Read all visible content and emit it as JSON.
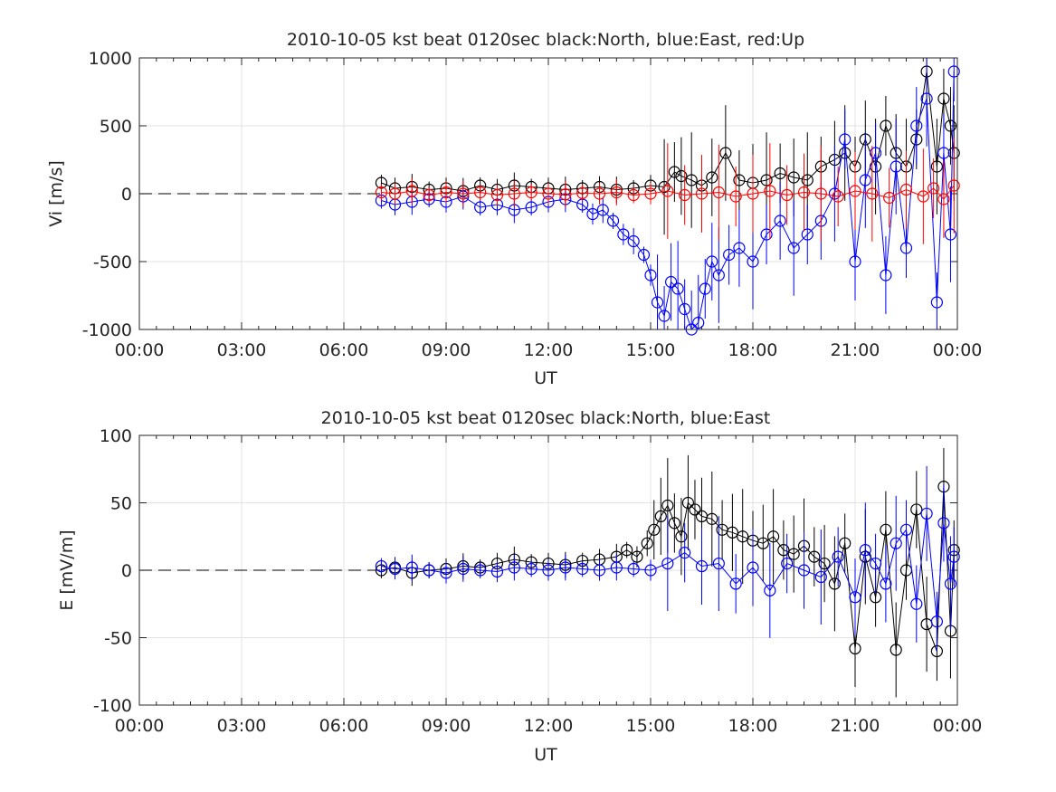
{
  "chart_data": [
    {
      "type": "scatter",
      "title": "2010-10-05 kst beat 0120sec black:North, blue:East, red:Up",
      "xlabel": "UT",
      "ylabel": "Vi [m/s]",
      "xlim_hours": [
        0,
        24
      ],
      "ylim": [
        -1000,
        1000
      ],
      "xticks": [
        "00:00",
        "03:00",
        "06:00",
        "09:00",
        "12:00",
        "15:00",
        "18:00",
        "21:00",
        "00:00"
      ],
      "yticks": [
        "1000",
        "500",
        "0",
        "-500",
        "-1000"
      ],
      "grid": true,
      "zero_line": "dashed",
      "marker": "open-circle-with-error-bars",
      "series": [
        {
          "color": "#000000",
          "x_hours": [
            7.1,
            7.5,
            8.0,
            8.5,
            9.0,
            9.5,
            10.0,
            10.5,
            11.0,
            11.5,
            12.0,
            12.5,
            13.0,
            13.5,
            14.0,
            14.5,
            15.0,
            15.4,
            15.7,
            15.9,
            16.2,
            16.5,
            16.8,
            17.2,
            17.6,
            18.0,
            18.4,
            18.8,
            19.2,
            19.6,
            20.0,
            20.4,
            20.7,
            21.0,
            21.3,
            21.6,
            21.9,
            22.2,
            22.5,
            22.8,
            23.1,
            23.4,
            23.6,
            23.8,
            23.9
          ],
          "values": [
            80,
            40,
            50,
            30,
            40,
            20,
            60,
            30,
            60,
            50,
            40,
            30,
            40,
            50,
            30,
            40,
            60,
            50,
            160,
            130,
            100,
            60,
            120,
            300,
            100,
            80,
            100,
            150,
            120,
            100,
            200,
            250,
            300,
            200,
            400,
            200,
            500,
            300,
            200,
            400,
            900,
            200,
            700,
            500,
            300
          ]
        },
        {
          "color": "#0000ff",
          "x_hours": [
            7.1,
            7.5,
            8.0,
            8.5,
            9.0,
            9.5,
            10.0,
            10.5,
            11.0,
            11.5,
            12.0,
            12.5,
            13.0,
            13.3,
            13.6,
            13.9,
            14.2,
            14.5,
            14.8,
            15.0,
            15.2,
            15.4,
            15.6,
            15.8,
            16.0,
            16.2,
            16.4,
            16.6,
            16.8,
            17.0,
            17.3,
            17.6,
            18.0,
            18.4,
            18.8,
            19.2,
            19.6,
            20.0,
            20.4,
            20.7,
            21.0,
            21.3,
            21.6,
            21.9,
            22.2,
            22.5,
            22.8,
            23.1,
            23.4,
            23.6,
            23.8,
            23.9
          ],
          "values": [
            -50,
            -80,
            -60,
            -40,
            -60,
            -20,
            -100,
            -80,
            -120,
            -100,
            -60,
            -40,
            -80,
            -150,
            -120,
            -200,
            -300,
            -350,
            -450,
            -600,
            -800,
            -900,
            -650,
            -700,
            -850,
            -1000,
            -950,
            -700,
            -500,
            -600,
            -450,
            -400,
            -500,
            -300,
            -200,
            -400,
            -300,
            -200,
            0,
            400,
            -500,
            100,
            300,
            -600,
            200,
            -400,
            500,
            700,
            -800,
            300,
            -300,
            900
          ]
        },
        {
          "color": "#ff0000",
          "x_hours": [
            7.1,
            7.5,
            8.0,
            8.5,
            9.0,
            9.5,
            10.0,
            10.5,
            11.0,
            11.5,
            12.0,
            12.5,
            13.0,
            13.5,
            14.0,
            14.5,
            15.0,
            15.5,
            16.0,
            16.5,
            17.0,
            17.5,
            18.0,
            18.5,
            19.0,
            19.5,
            20.0,
            20.5,
            21.0,
            21.5,
            22.0,
            22.5,
            23.0,
            23.3,
            23.6,
            23.9
          ],
          "values": [
            10,
            0,
            20,
            -10,
            10,
            0,
            10,
            -10,
            0,
            10,
            0,
            -5,
            5,
            0,
            10,
            -10,
            0,
            20,
            -10,
            0,
            10,
            -20,
            0,
            20,
            -10,
            10,
            0,
            -20,
            20,
            0,
            -30,
            30,
            -20,
            40,
            -40,
            60
          ]
        }
      ]
    },
    {
      "type": "scatter",
      "title": "2010-10-05 kst beat 0120sec black:North, blue:East",
      "xlabel": "UT",
      "ylabel": "E [mV/m]",
      "xlim_hours": [
        0,
        24
      ],
      "ylim": [
        -100,
        100
      ],
      "xticks": [
        "00:00",
        "03:00",
        "06:00",
        "09:00",
        "12:00",
        "15:00",
        "18:00",
        "21:00",
        "00:00"
      ],
      "yticks": [
        "100",
        "50",
        "0",
        "-50",
        "-100"
      ],
      "grid": true,
      "zero_line": "dashed",
      "marker": "open-circle-with-error-bars",
      "series": [
        {
          "color": "#000000",
          "x_hours": [
            7.1,
            7.5,
            8.0,
            8.5,
            9.0,
            9.5,
            10.0,
            10.5,
            11.0,
            11.5,
            12.0,
            12.5,
            13.0,
            13.5,
            14.0,
            14.3,
            14.6,
            14.9,
            15.1,
            15.3,
            15.5,
            15.7,
            15.9,
            16.1,
            16.3,
            16.5,
            16.8,
            17.1,
            17.4,
            17.7,
            18.0,
            18.3,
            18.6,
            18.9,
            19.2,
            19.5,
            19.8,
            20.1,
            20.4,
            20.7,
            21.0,
            21.3,
            21.6,
            21.9,
            22.2,
            22.5,
            22.8,
            23.1,
            23.4,
            23.6,
            23.8,
            23.9
          ],
          "values": [
            0,
            2,
            -2,
            0,
            1,
            3,
            2,
            5,
            8,
            6,
            5,
            4,
            7,
            8,
            10,
            15,
            10,
            20,
            30,
            40,
            48,
            35,
            25,
            50,
            45,
            40,
            38,
            30,
            28,
            25,
            22,
            20,
            25,
            15,
            12,
            18,
            10,
            5,
            -10,
            20,
            -58,
            10,
            -20,
            30,
            -59,
            0,
            45,
            -40,
            -60,
            62,
            -45,
            15
          ]
        },
        {
          "color": "#0000ff",
          "x_hours": [
            7.1,
            7.5,
            8.0,
            8.5,
            9.0,
            9.5,
            10.0,
            10.5,
            11.0,
            11.5,
            12.0,
            12.5,
            13.0,
            13.5,
            14.0,
            14.5,
            15.0,
            15.5,
            16.0,
            16.5,
            17.0,
            17.5,
            18.0,
            18.5,
            19.0,
            19.5,
            20.0,
            20.5,
            21.0,
            21.3,
            21.6,
            21.9,
            22.2,
            22.5,
            22.8,
            23.1,
            23.4,
            23.6,
            23.8,
            23.9
          ],
          "values": [
            3,
            1,
            2,
            0,
            -2,
            1,
            0,
            -1,
            2,
            1,
            0,
            2,
            1,
            0,
            2,
            1,
            0,
            5,
            13,
            3,
            5,
            -10,
            2,
            -15,
            5,
            0,
            -5,
            10,
            -20,
            15,
            5,
            -10,
            20,
            30,
            -25,
            42,
            -38,
            35,
            -10,
            10
          ]
        }
      ]
    }
  ]
}
